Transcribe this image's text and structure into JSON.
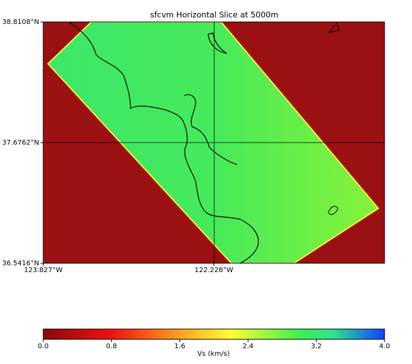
{
  "chart_data": {
    "type": "map",
    "title": "sfcvm Horizontal Slice at 5000m",
    "xlim": [
      -123.827,
      -120.629
    ],
    "ylim": [
      36.5416,
      38.8108
    ],
    "xticks": [
      {
        "value": -123.827,
        "label": "123.827°W"
      },
      {
        "value": -122.228,
        "label": "122.228°W"
      }
    ],
    "yticks": [
      {
        "value": 38.8108,
        "label": "38.8108°N"
      },
      {
        "value": 37.6762,
        "label": "37.6762°N"
      },
      {
        "value": 36.5416,
        "label": "36.5416°N"
      }
    ],
    "colorbar": {
      "label": "Vs (km/s)",
      "lim": [
        0,
        4
      ],
      "ticks": [
        {
          "value": 0,
          "label": "0.0"
        },
        {
          "value": 0.8,
          "label": "0.8"
        },
        {
          "value": 1.6,
          "label": "1.6"
        },
        {
          "value": 2.4,
          "label": "2.4"
        },
        {
          "value": 3.2,
          "label": "3.2"
        },
        {
          "value": 4,
          "label": "4.0"
        }
      ]
    }
  }
}
